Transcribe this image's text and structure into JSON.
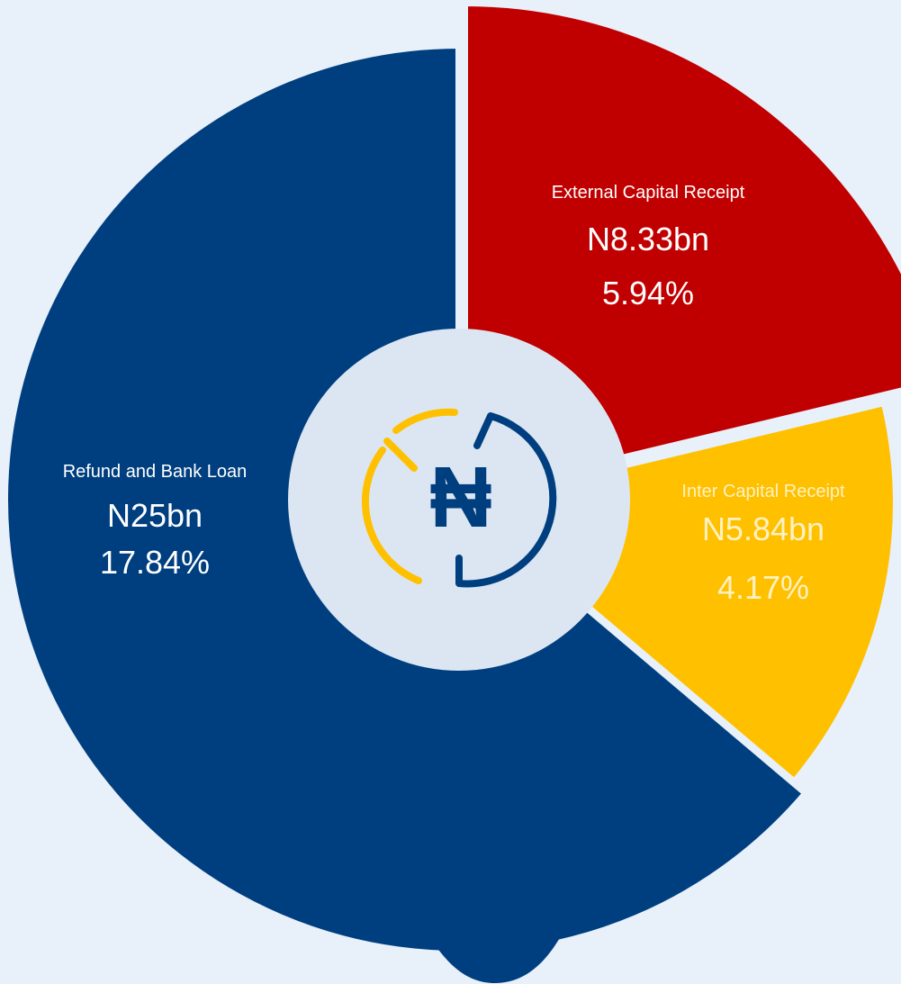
{
  "chart_data": {
    "type": "pie",
    "categories": [
      "External Capital Receipt",
      "Inter Capital Receipt",
      "Refund and Bank Loan"
    ],
    "values": [
      5.94,
      4.17,
      17.84
    ],
    "value_labels": [
      "5.94%",
      "4.17%",
      "17.84%"
    ],
    "amounts": [
      "N8.33bn",
      "N5.84bn",
      "N25bn"
    ],
    "colors": [
      "#c00000",
      "#ffc000",
      "#003f7f"
    ],
    "center_symbol": "₦"
  }
}
